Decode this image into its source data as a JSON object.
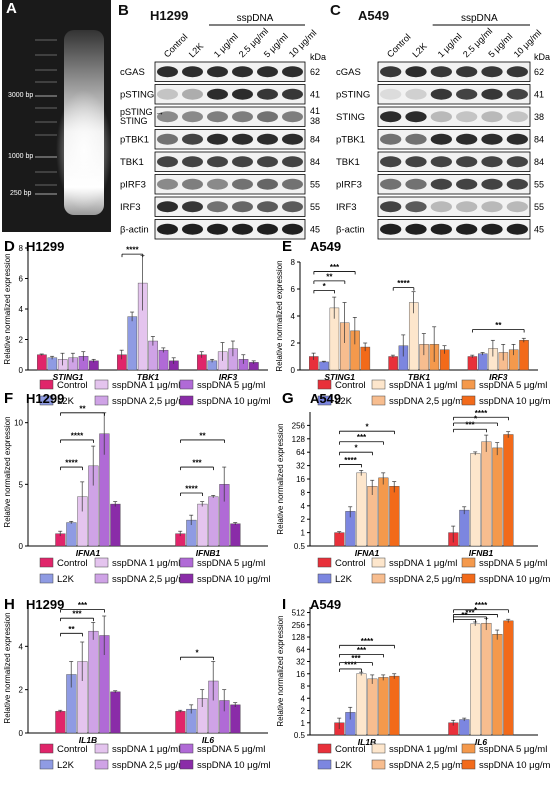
{
  "panels": {
    "A": {
      "label": "A",
      "markers": [
        "3000 bp",
        "1000 bp",
        "250 bp"
      ]
    },
    "B": {
      "label": "B",
      "cell": "H1299",
      "treatment_header": "sspDNA",
      "lanes": [
        "Control",
        "L2K",
        "1 μg/ml",
        "2.5 μg/ml",
        "5 μg/ml",
        "10 μg/ml"
      ],
      "kda_header": "kDa",
      "rows": [
        {
          "name": "cGAS",
          "kda": "62"
        },
        {
          "name": "pSTING",
          "kda": "41"
        },
        {
          "name": "pSTING →",
          "name2": "STING",
          "kda": "41",
          "kda2": "38"
        },
        {
          "name": "pTBK1",
          "kda": "84"
        },
        {
          "name": "TBK1",
          "kda": "84"
        },
        {
          "name": "pIRF3",
          "kda": "55"
        },
        {
          "name": "IRF3",
          "kda": "55"
        },
        {
          "name": "β-actin",
          "kda": "45"
        }
      ]
    },
    "C": {
      "label": "C",
      "cell": "A549",
      "treatment_header": "sspDNA",
      "lanes": [
        "Control",
        "L2K",
        "1 μg/ml",
        "2.5 μg/ml",
        "5 μg/ml",
        "10 μg/ml"
      ],
      "kda_header": "kDa",
      "rows": [
        {
          "name": "cGAS",
          "kda": "62"
        },
        {
          "name": "pSTING",
          "kda": "41"
        },
        {
          "name": "STING",
          "kda": "38"
        },
        {
          "name": "pTBK1",
          "kda": "84"
        },
        {
          "name": "TBK1",
          "kda": "84"
        },
        {
          "name": "pIRF3",
          "kda": "55"
        },
        {
          "name": "IRF3",
          "kda": "55"
        },
        {
          "name": "β-actin",
          "kda": "45"
        }
      ]
    }
  },
  "legend_labels": [
    "Control",
    "sspDNA 1 μg/ml",
    "sspDNA 5 μg/ml",
    "L2K",
    "sspDNA 2,5 μg/ml",
    "sspDNA 10 μg/ml"
  ],
  "colors": {
    "h1299": [
      "#e0256a",
      "#8f9be3",
      "#e4c4ee",
      "#cfa3e6",
      "#b06ad6",
      "#8a2ca8"
    ],
    "a549": [
      "#e8303a",
      "#7c86e0",
      "#fde6cc",
      "#f7bd8f",
      "#f4994c",
      "#f26a1a"
    ]
  },
  "chart_data": [
    {
      "id": "D",
      "label": "D",
      "title": "H1299",
      "type": "bar",
      "ylabel": "Relative normalized expression",
      "ylim": [
        0,
        8
      ],
      "yticks": [
        0,
        2,
        4,
        6,
        8
      ],
      "categories": [
        "STING1",
        "TBK1",
        "IRF3"
      ],
      "series": [
        {
          "name": "Control",
          "values": [
            1.0,
            1.0,
            1.0
          ],
          "err": [
            0.05,
            0.3,
            0.2
          ]
        },
        {
          "name": "L2K",
          "values": [
            0.8,
            3.5,
            0.6
          ],
          "err": [
            0.1,
            0.3,
            0.1
          ]
        },
        {
          "name": "sspDNA 1 μg/ml",
          "values": [
            0.7,
            5.7,
            1.2
          ],
          "err": [
            0.4,
            1.8,
            0.6
          ]
        },
        {
          "name": "sspDNA 2,5 μg/ml",
          "values": [
            0.8,
            1.9,
            1.4
          ],
          "err": [
            0.3,
            0.3,
            0.5
          ]
        },
        {
          "name": "sspDNA 5 μg/ml",
          "values": [
            0.9,
            1.3,
            0.7
          ],
          "err": [
            0.3,
            0.15,
            0.3
          ]
        },
        {
          "name": "sspDNA 10 μg/ml",
          "values": [
            0.6,
            0.6,
            0.5
          ],
          "err": [
            0.1,
            0.2,
            0.1
          ]
        }
      ],
      "sig": [
        {
          "from": 0,
          "to": 2,
          "cat": 1,
          "label": "****",
          "y": 7.6
        }
      ]
    },
    {
      "id": "E",
      "label": "E",
      "title": "A549",
      "type": "bar",
      "ylabel": "Relative normalized expression",
      "ylim": [
        0,
        8
      ],
      "yticks": [
        0,
        2,
        4,
        6,
        8
      ],
      "categories": [
        "STING1",
        "TBK1",
        "IRF3"
      ],
      "series": [
        {
          "name": "Control",
          "values": [
            1.0,
            1.0,
            1.0
          ],
          "err": [
            0.25,
            0.1,
            0.1
          ]
        },
        {
          "name": "L2K",
          "values": [
            0.6,
            1.8,
            1.2
          ],
          "err": [
            0.05,
            0.8,
            0.1
          ]
        },
        {
          "name": "sspDNA 1 μg/ml",
          "values": [
            4.6,
            5.0,
            1.6
          ],
          "err": [
            0.8,
            0.8,
            0.6
          ]
        },
        {
          "name": "sspDNA 2,5 μg/ml",
          "values": [
            3.5,
            1.9,
            1.3
          ],
          "err": [
            1.5,
            0.8,
            0.6
          ]
        },
        {
          "name": "sspDNA 5 μg/ml",
          "values": [
            2.9,
            1.9,
            1.5
          ],
          "err": [
            1.0,
            1.3,
            0.4
          ]
        },
        {
          "name": "sspDNA 10 μg/ml",
          "values": [
            1.7,
            1.5,
            2.2
          ],
          "err": [
            0.3,
            0.3,
            0.15
          ]
        }
      ],
      "sig": [
        {
          "from": 0,
          "to": 4,
          "cat": 0,
          "label": "***",
          "y": 7.3
        },
        {
          "from": 0,
          "to": 3,
          "cat": 0,
          "label": "**",
          "y": 6.6
        },
        {
          "from": 0,
          "to": 2,
          "cat": 0,
          "label": "*",
          "y": 5.9
        },
        {
          "from": 0,
          "to": 2,
          "cat": 1,
          "label": "****",
          "y": 6.1
        },
        {
          "from": 0,
          "to": 5,
          "cat": 2,
          "label": "**",
          "y": 3.0
        }
      ]
    },
    {
      "id": "F",
      "label": "F",
      "title": "H1299",
      "type": "bar",
      "ylabel": "Relative normalized expression",
      "ylim": [
        0,
        12
      ],
      "yticks": [
        0,
        5,
        10
      ],
      "categories": [
        "IFNA1",
        "IFNB1"
      ],
      "series": [
        {
          "name": "Control",
          "values": [
            1.0,
            1.0
          ],
          "err": [
            0.2,
            0.2
          ]
        },
        {
          "name": "L2K",
          "values": [
            1.9,
            2.1
          ],
          "err": [
            0.1,
            0.4
          ]
        },
        {
          "name": "sspDNA 1 μg/ml",
          "values": [
            4.0,
            3.4
          ],
          "err": [
            1.2,
            0.2
          ]
        },
        {
          "name": "sspDNA 2,5 μg/ml",
          "values": [
            6.5,
            4.0
          ],
          "err": [
            1.6,
            0.1
          ]
        },
        {
          "name": "sspDNA 5 μg/ml",
          "values": [
            9.1,
            5.0
          ],
          "err": [
            1.7,
            1.4
          ]
        },
        {
          "name": "sspDNA 10 μg/ml",
          "values": [
            3.4,
            1.8
          ],
          "err": [
            0.2,
            0.1
          ]
        }
      ],
      "sig": [
        {
          "from": 0,
          "to": 4,
          "cat": 0,
          "label": "**",
          "y": 10.8
        },
        {
          "from": 0,
          "to": 3,
          "cat": 0,
          "label": "****",
          "y": 8.6
        },
        {
          "from": 0,
          "to": 2,
          "cat": 0,
          "label": "****",
          "y": 6.4
        },
        {
          "from": 0,
          "to": 4,
          "cat": 1,
          "label": "**",
          "y": 8.6
        },
        {
          "from": 0,
          "to": 3,
          "cat": 1,
          "label": "***",
          "y": 6.4
        },
        {
          "from": 0,
          "to": 2,
          "cat": 1,
          "label": "****",
          "y": 4.3
        }
      ]
    },
    {
      "id": "G",
      "label": "G",
      "title": "A549",
      "type": "bar",
      "log": true,
      "ylabel": "Relative normalized expression",
      "ylim": [
        0.5,
        512
      ],
      "yticks": [
        0.5,
        1,
        2,
        4,
        8,
        16,
        32,
        64,
        128,
        256
      ],
      "ytick_labels": [
        "0.5",
        "1",
        "2",
        "4",
        "8",
        "16",
        "32",
        "64",
        "128",
        "256"
      ],
      "categories": [
        "IFNA1",
        "IFNB1"
      ],
      "series": [
        {
          "name": "Control",
          "values": [
            1.0,
            1.0
          ],
          "err": [
            0.05,
            0.4
          ]
        },
        {
          "name": "L2K",
          "values": [
            3.0,
            3.2
          ],
          "err": [
            0.8,
            0.6
          ]
        },
        {
          "name": "sspDNA 1 μg/ml",
          "values": [
            22,
            60
          ],
          "err": [
            3,
            5
          ]
        },
        {
          "name": "sspDNA 2,5 μg/ml",
          "values": [
            11,
            110
          ],
          "err": [
            4,
            45
          ]
        },
        {
          "name": "sspDNA 5 μg/ml",
          "values": [
            17,
            80
          ],
          "err": [
            5,
            25
          ]
        },
        {
          "name": "sspDNA 10 μg/ml",
          "values": [
            11,
            160
          ],
          "err": [
            3,
            25
          ]
        }
      ],
      "sig": [
        {
          "from": 0,
          "to": 5,
          "cat": 0,
          "label": "*",
          "y": 190
        },
        {
          "from": 0,
          "to": 4,
          "cat": 0,
          "label": "***",
          "y": 110
        },
        {
          "from": 0,
          "to": 3,
          "cat": 0,
          "label": "*",
          "y": 64
        },
        {
          "from": 0,
          "to": 2,
          "cat": 0,
          "label": "****",
          "y": 34
        },
        {
          "from": 0,
          "to": 5,
          "cat": 1,
          "label": "****",
          "y": 390
        },
        {
          "from": 0,
          "to": 4,
          "cat": 1,
          "label": "*",
          "y": 290
        },
        {
          "from": 0,
          "to": 3,
          "cat": 1,
          "label": "***",
          "y": 210
        }
      ]
    },
    {
      "id": "H",
      "label": "H",
      "title": "H1299",
      "type": "bar",
      "ylabel": "Relative normalized expression",
      "ylim": [
        0,
        6
      ],
      "yticks": [
        0,
        2,
        4
      ],
      "categories": [
        "IL1B",
        "IL6"
      ],
      "series": [
        {
          "name": "Control",
          "values": [
            1.0,
            1.0
          ],
          "err": [
            0.05,
            0.05
          ]
        },
        {
          "name": "L2K",
          "values": [
            2.7,
            1.1
          ],
          "err": [
            0.6,
            0.2
          ]
        },
        {
          "name": "sspDNA 1 μg/ml",
          "values": [
            3.3,
            1.6
          ],
          "err": [
            0.9,
            0.4
          ]
        },
        {
          "name": "sspDNA 2,5 μg/ml",
          "values": [
            4.7,
            2.4
          ],
          "err": [
            0.4,
            0.9
          ]
        },
        {
          "name": "sspDNA 5 μg/ml",
          "values": [
            4.5,
            1.5
          ],
          "err": [
            0.9,
            0.5
          ]
        },
        {
          "name": "sspDNA 10 μg/ml",
          "values": [
            1.9,
            1.3
          ],
          "err": [
            0.05,
            0.1
          ]
        }
      ],
      "sig": [
        {
          "from": 0,
          "to": 4,
          "cat": 0,
          "label": "***",
          "y": 5.7
        },
        {
          "from": 0,
          "to": 3,
          "cat": 0,
          "label": "***",
          "y": 5.3
        },
        {
          "from": 0,
          "to": 2,
          "cat": 0,
          "label": "**",
          "y": 4.6
        },
        {
          "from": 0,
          "to": 3,
          "cat": 1,
          "label": "*",
          "y": 3.5
        }
      ]
    },
    {
      "id": "I",
      "label": "I",
      "title": "A549",
      "type": "bar",
      "log": true,
      "ylabel": "Relative normalized expression",
      "ylim": [
        0.5,
        700
      ],
      "yticks": [
        0.5,
        1,
        2,
        4,
        8,
        16,
        32,
        64,
        128,
        256,
        512
      ],
      "ytick_labels": [
        "0.5",
        "1",
        "2",
        "4",
        "8",
        "16",
        "32",
        "64",
        "128",
        "256",
        "512"
      ],
      "categories": [
        "IL1B",
        "IL6"
      ],
      "series": [
        {
          "name": "Control",
          "values": [
            1.0,
            1.0
          ],
          "err": [
            0.3,
            0.15
          ]
        },
        {
          "name": "L2K",
          "values": [
            1.8,
            1.2
          ],
          "err": [
            0.6,
            0.1
          ]
        },
        {
          "name": "sspDNA 1 μg/ml",
          "values": [
            16,
            270
          ],
          "err": [
            1.5,
            30
          ]
        },
        {
          "name": "sspDNA 2,5 μg/ml",
          "values": [
            12,
            280
          ],
          "err": [
            3,
            90
          ]
        },
        {
          "name": "sspDNA 5 μg/ml",
          "values": [
            13,
            150
          ],
          "err": [
            2,
            40
          ]
        },
        {
          "name": "sspDNA 10 μg/ml",
          "values": [
            14,
            320
          ],
          "err": [
            2,
            30
          ]
        }
      ],
      "sig": [
        {
          "from": 0,
          "to": 5,
          "cat": 0,
          "label": "****",
          "y": 80
        },
        {
          "from": 0,
          "to": 4,
          "cat": 0,
          "label": "***",
          "y": 48
        },
        {
          "from": 0,
          "to": 3,
          "cat": 0,
          "label": "***",
          "y": 30
        },
        {
          "from": 0,
          "to": 2,
          "cat": 0,
          "label": "****",
          "y": 21
        },
        {
          "from": 0,
          "to": 5,
          "cat": 1,
          "label": "****",
          "y": 600
        },
        {
          "from": 0,
          "to": 4,
          "cat": 1,
          "label": "*",
          "y": 460
        },
        {
          "from": 0,
          "to": 3,
          "cat": 1,
          "label": "***",
          "y": 400
        },
        {
          "from": 0,
          "to": 2,
          "cat": 1,
          "label": "**",
          "y": 345
        }
      ]
    }
  ]
}
